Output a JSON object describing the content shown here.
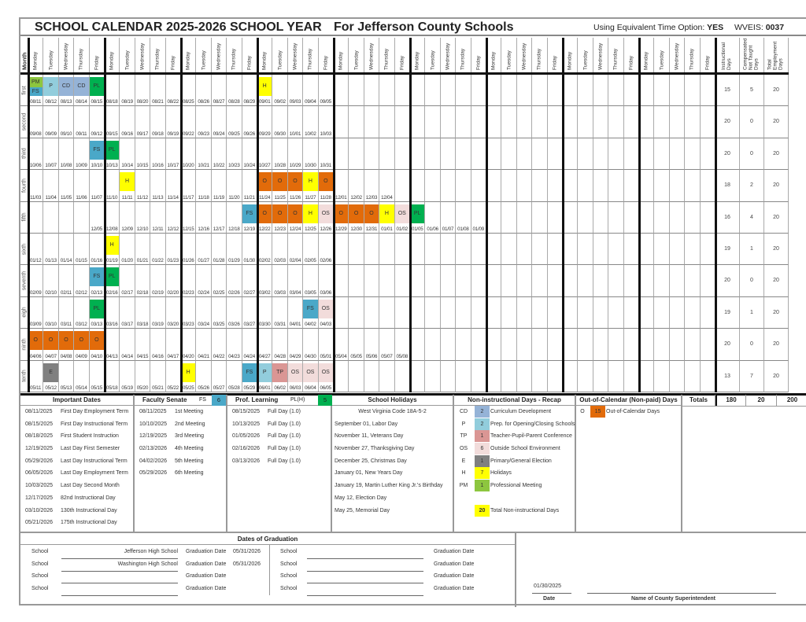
{
  "header": {
    "title": "SCHOOL CALENDAR",
    "year": "2025-2026 SCHOOL YEAR",
    "county": "For Jefferson County Schools",
    "equiv_label": "Using Equivalent Time Option:",
    "equiv_value": "YES",
    "wveis_label": "WVEIS:",
    "wveis_value": "0037"
  },
  "columns": {
    "month": "Month",
    "days": [
      "Monday",
      "Tuesday",
      "Wednesday",
      "Thursday",
      "Friday"
    ],
    "weeks": 9,
    "stats": [
      "Instructional Days",
      "Compensated Not Taught Days",
      "Total Employment Days"
    ]
  },
  "colors": {
    "PM": "#8dc63f",
    "FS": "#4aa8c8",
    "P": "#92cddc",
    "CD": "#95b3d7",
    "PL": "#00b050",
    "H": "#ffff00",
    "O": "#e26b0a",
    "OS": "#f2dcdb",
    "TP": "#da9694",
    "E": "#808080"
  },
  "months": [
    {
      "label": "first",
      "start": 0,
      "dates": [
        "08/11",
        "08/12",
        "08/13",
        "08/14",
        "08/15",
        "08/18",
        "08/19",
        "08/20",
        "08/21",
        "08/22",
        "08/25",
        "08/26",
        "08/27",
        "08/28",
        "08/29",
        "09/01",
        "09/02",
        "09/03",
        "09/04",
        "09/05"
      ],
      "codes": {
        "0": "PM|FS",
        "1": "P",
        "2": "CD",
        "3": "CD",
        "4": "PL",
        "15": "H"
      },
      "stats": [
        "15",
        "5",
        "20"
      ]
    },
    {
      "label": "second",
      "start": 0,
      "dates": [
        "09/08",
        "09/09",
        "09/10",
        "09/11",
        "09/12",
        "09/15",
        "09/16",
        "09/17",
        "09/18",
        "09/19",
        "09/22",
        "09/23",
        "09/24",
        "09/25",
        "09/26",
        "09/29",
        "09/30",
        "10/01",
        "10/02",
        "10/03"
      ],
      "codes": {},
      "stats": [
        "20",
        "0",
        "20"
      ]
    },
    {
      "label": "third",
      "start": 0,
      "dates": [
        "10/06",
        "10/07",
        "10/08",
        "10/09",
        "10/10",
        "10/13",
        "10/14",
        "10/15",
        "10/16",
        "10/17",
        "10/20",
        "10/21",
        "10/22",
        "10/23",
        "10/24",
        "10/27",
        "10/28",
        "10/29",
        "10/30",
        "10/31"
      ],
      "codes": {
        "4": "FS",
        "5": "PL"
      },
      "stats": [
        "20",
        "0",
        "20"
      ]
    },
    {
      "label": "fourth",
      "start": 0,
      "dates": [
        "11/03",
        "11/04",
        "11/05",
        "11/06",
        "11/07",
        "11/10",
        "11/11",
        "11/12",
        "11/13",
        "11/14",
        "11/17",
        "11/18",
        "11/19",
        "11/20",
        "11/21",
        "11/24",
        "11/25",
        "11/26",
        "11/27",
        "11/28",
        "12/01",
        "12/02",
        "12/03",
        "12/04"
      ],
      "codes": {
        "6": "H",
        "15": "O",
        "16": "O",
        "17": "O",
        "18": "H",
        "19": "O"
      },
      "stats": [
        "18",
        "2",
        "20"
      ]
    },
    {
      "label": "fifth",
      "start": 4,
      "dates": [
        "12/05",
        "12/08",
        "12/09",
        "12/10",
        "12/11",
        "12/12",
        "12/15",
        "12/16",
        "12/17",
        "12/18",
        "12/19",
        "12/22",
        "12/23",
        "12/24",
        "12/25",
        "12/26",
        "12/29",
        "12/30",
        "12/31",
        "01/01",
        "01/02",
        "01/05",
        "01/06",
        "01/07",
        "01/08",
        "01/09"
      ],
      "codes": {
        "10": "FS",
        "11": "O",
        "12": "O",
        "13": "O",
        "14": "H",
        "15": "OS",
        "16": "O",
        "17": "O",
        "18": "O",
        "19": "H",
        "20": "OS",
        "21": "PL"
      },
      "stats": [
        "16",
        "4",
        "20"
      ]
    },
    {
      "label": "sixth",
      "start": 0,
      "dates": [
        "01/12",
        "01/13",
        "01/14",
        "01/15",
        "01/16",
        "01/19",
        "01/20",
        "01/21",
        "01/22",
        "01/23",
        "01/26",
        "01/27",
        "01/28",
        "01/29",
        "01/30",
        "02/02",
        "02/03",
        "02/04",
        "02/05",
        "02/06"
      ],
      "codes": {
        "5": "H"
      },
      "stats": [
        "19",
        "1",
        "20"
      ]
    },
    {
      "label": "seventh",
      "start": 0,
      "dates": [
        "02/09",
        "02/10",
        "02/11",
        "02/12",
        "02/13",
        "02/16",
        "02/17",
        "02/18",
        "02/19",
        "02/20",
        "02/23",
        "02/24",
        "02/25",
        "02/26",
        "02/27",
        "03/02",
        "03/03",
        "03/04",
        "03/05",
        "03/06"
      ],
      "codes": {
        "4": "FS",
        "5": "PL"
      },
      "stats": [
        "20",
        "0",
        "20"
      ]
    },
    {
      "label": "eigh",
      "start": 0,
      "dates": [
        "03/09",
        "03/10",
        "03/11",
        "03/12",
        "03/13",
        "03/16",
        "03/17",
        "03/18",
        "03/19",
        "03/20",
        "03/23",
        "03/24",
        "03/25",
        "03/26",
        "03/27",
        "03/30",
        "03/31",
        "04/01",
        "04/02",
        "04/03"
      ],
      "codes": {
        "4": "PL",
        "18": "FS",
        "19": "OS"
      },
      "stats": [
        "19",
        "1",
        "20"
      ]
    },
    {
      "label": "ninth",
      "start": 0,
      "dates": [
        "04/06",
        "04/07",
        "04/08",
        "04/09",
        "04/10",
        "04/13",
        "04/14",
        "04/15",
        "04/16",
        "04/17",
        "04/20",
        "04/21",
        "04/22",
        "04/23",
        "04/24",
        "04/27",
        "04/28",
        "04/29",
        "04/30",
        "05/01",
        "05/04",
        "05/05",
        "05/06",
        "05/07",
        "05/08"
      ],
      "codes": {
        "0": "O",
        "1": "O",
        "2": "O",
        "3": "O",
        "4": "O"
      },
      "stats": [
        "20",
        "0",
        "20"
      ]
    },
    {
      "label": "tenth",
      "start": 0,
      "dates": [
        "05/11",
        "05/12",
        "05/13",
        "05/14",
        "05/15",
        "05/18",
        "05/19",
        "05/20",
        "05/21",
        "05/22",
        "05/25",
        "05/26",
        "05/27",
        "05/28",
        "05/29",
        "06/01",
        "06/02",
        "06/03",
        "06/04",
        "06/05"
      ],
      "codes": {
        "1": "E",
        "10": "H",
        "14": "FS",
        "15": "P",
        "16": "TP",
        "17": "OS",
        "18": "OS",
        "19": "OS"
      },
      "stats": [
        "13",
        "7",
        "20"
      ]
    }
  ],
  "important_dates": {
    "title": "Important Dates",
    "items": [
      {
        "date": "08/11/2025",
        "label": "First Day Employment Term"
      },
      {
        "date": "08/15/2025",
        "label": "First Day Instructional Term"
      },
      {
        "date": "08/18/2025",
        "label": "First Student Instruction"
      },
      {
        "date": "12/19/2025",
        "label": "Last Day First Semester"
      },
      {
        "date": "05/29/2026",
        "label": "Last Day Instructional Term"
      },
      {
        "date": "06/05/2026",
        "label": "Last Day Employment Term"
      },
      {
        "date": "10/03/2025",
        "label": "Last Day Second Month"
      },
      {
        "date": "12/17/2025",
        "label": "82nd Instructional Day"
      },
      {
        "date": "03/10/2026",
        "label": "130th Instructional Day"
      },
      {
        "date": "05/21/2026",
        "label": "175th Instructional Day"
      }
    ]
  },
  "faculty_senate": {
    "title": "Faculty Senate",
    "code": "FS",
    "count": "6",
    "items": [
      {
        "date": "08/11/2025",
        "label": "1st Meeting"
      },
      {
        "date": "10/10/2025",
        "label": "2nd Meeting"
      },
      {
        "date": "12/19/2025",
        "label": "3rd Meeting"
      },
      {
        "date": "02/13/2026",
        "label": "4th Meeting"
      },
      {
        "date": "04/02/2026",
        "label": "5th Meeting"
      },
      {
        "date": "05/29/2026",
        "label": "6th Meeting"
      }
    ]
  },
  "prof_learning": {
    "title": "Prof. Learning",
    "code": "PL(H)",
    "count": "5",
    "items": [
      {
        "date": "08/15/2025",
        "label": "Full Day (1.0)"
      },
      {
        "date": "10/13/2025",
        "label": "Full Day (1.0)"
      },
      {
        "date": "01/05/2026",
        "label": "Full Day (1.0)"
      },
      {
        "date": "02/16/2026",
        "label": "Full Day (1.0)"
      },
      {
        "date": "03/13/2026",
        "label": "Full Day (1.0)"
      }
    ]
  },
  "school_holidays": {
    "title": "School Holidays",
    "code_ref": "West Virginia Code 18A-5-2",
    "items": [
      "September 01, Labor Day",
      "November 11, Veterans Day",
      "November 27, Thanksgiving Day",
      "December 25, Christmas Day",
      "January 01, New Years Day",
      "January 19, Martin Luther King Jr.'s Birthday",
      "May 12, Election Day",
      "May 25, Memorial Day"
    ]
  },
  "recap": {
    "title": "Non-instructional Days - Recap",
    "items": [
      {
        "code": "CD",
        "count": "2",
        "label": "Curriculum Development"
      },
      {
        "code": "P",
        "count": "2",
        "label": "Prep. for Opening/Closing Schools"
      },
      {
        "code": "TP",
        "count": "1",
        "label": "Teacher-Pupil-Parent Conference"
      },
      {
        "code": "OS",
        "count": "6",
        "label": "Outside School Environment"
      },
      {
        "code": "E",
        "count": "1",
        "label": "Primary/General Election"
      },
      {
        "code": "H",
        "count": "7",
        "label": "Holidays"
      },
      {
        "code": "PM",
        "count": "1",
        "label": "Professional Meeting"
      }
    ],
    "total_count": "20",
    "total_label": "Total Non-instructional Days"
  },
  "out_of_calendar": {
    "title": "Out-of-Calendar (Non-paid) Days",
    "code": "O",
    "count": "15",
    "label": "Out-of-Calendar Days"
  },
  "totals": {
    "label": "Totals",
    "instructional": "180",
    "compensated": "20",
    "employment": "200"
  },
  "graduation": {
    "title": "Dates of Graduation",
    "school_label": "School",
    "date_label": "Graduation Date",
    "left": [
      {
        "school": "Jefferson High School",
        "date": "05/31/2026"
      },
      {
        "school": "Washington High School",
        "date": "05/31/2026"
      },
      {
        "school": "",
        "date": ""
      },
      {
        "school": "",
        "date": ""
      }
    ]
  },
  "signature": {
    "date_value": "01/30/2025",
    "date_label": "Date",
    "name_label": "Name of County Superintendent"
  }
}
